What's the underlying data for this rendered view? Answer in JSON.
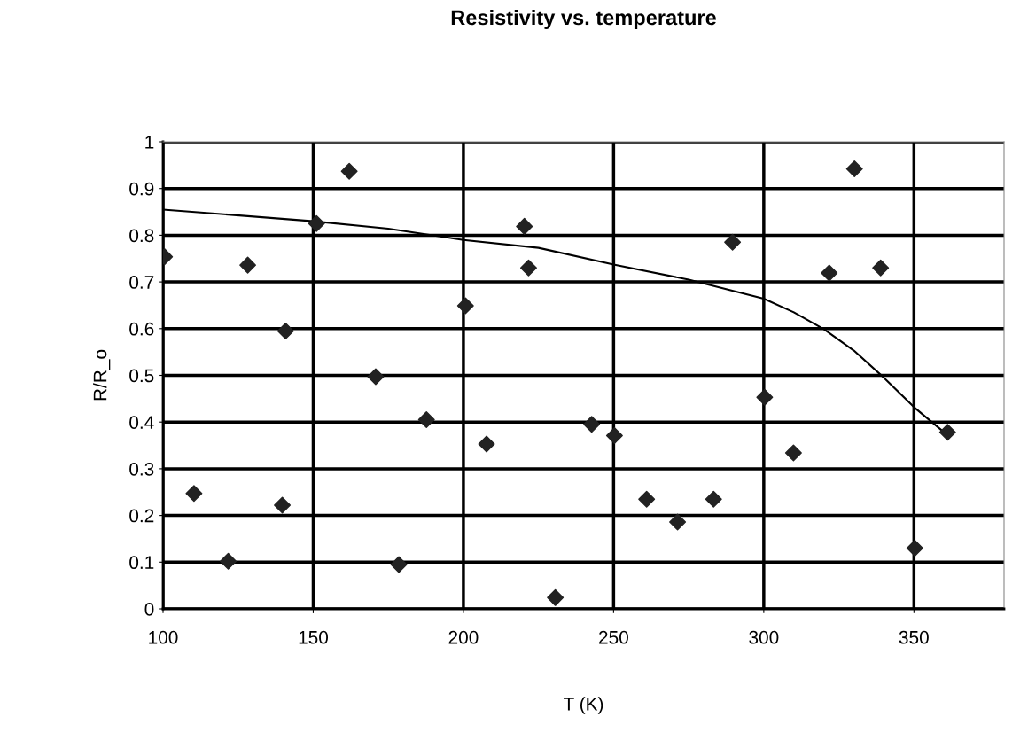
{
  "chart_data": {
    "type": "scatter",
    "title": "Resistivity vs. temperature",
    "xlabel": "T (K)",
    "ylabel": "R/R_o",
    "xlim": [
      100,
      380
    ],
    "xticks": [
      100,
      150,
      200,
      250,
      300,
      350
    ],
    "ylim": [
      0,
      1
    ],
    "yticks": [
      0,
      0.1,
      0.2,
      0.3,
      0.4,
      0.5,
      0.6,
      0.7,
      0.8,
      0.9,
      1
    ],
    "grid": true,
    "legend": false,
    "series": [
      {
        "marker": "diamond",
        "color": "#222222",
        "x": [
          100.5,
          110.3,
          121.7,
          128.2,
          139.7,
          140.8,
          151.1,
          162,
          170.8,
          178.5,
          187.7,
          200.7,
          207.7,
          220.3,
          221.7,
          230.6,
          242.7,
          250.3,
          261,
          271.3,
          283.3,
          289.6,
          300.3,
          309.9,
          321.8,
          330.2,
          338.9,
          350.3,
          361.2
        ],
        "values": [
          0.754,
          0.247,
          0.102,
          0.736,
          0.222,
          0.595,
          0.825,
          0.937,
          0.497,
          0.095,
          0.405,
          0.649,
          0.353,
          0.819,
          0.73,
          0.024,
          0.395,
          0.371,
          0.235,
          0.186,
          0.235,
          0.785,
          0.453,
          0.334,
          0.719,
          0.942,
          0.73,
          0.13,
          0.378
        ]
      },
      {
        "type": "line",
        "marker": "none",
        "color": "#000000",
        "x": [
          100,
          150,
          175,
          200,
          225,
          250,
          275,
          300,
          310,
          320,
          330,
          340,
          350,
          361
        ],
        "values": [
          0.855,
          0.83,
          0.814,
          0.79,
          0.773,
          0.737,
          0.705,
          0.664,
          0.635,
          0.599,
          0.553,
          0.495,
          0.432,
          0.373
        ]
      }
    ]
  }
}
